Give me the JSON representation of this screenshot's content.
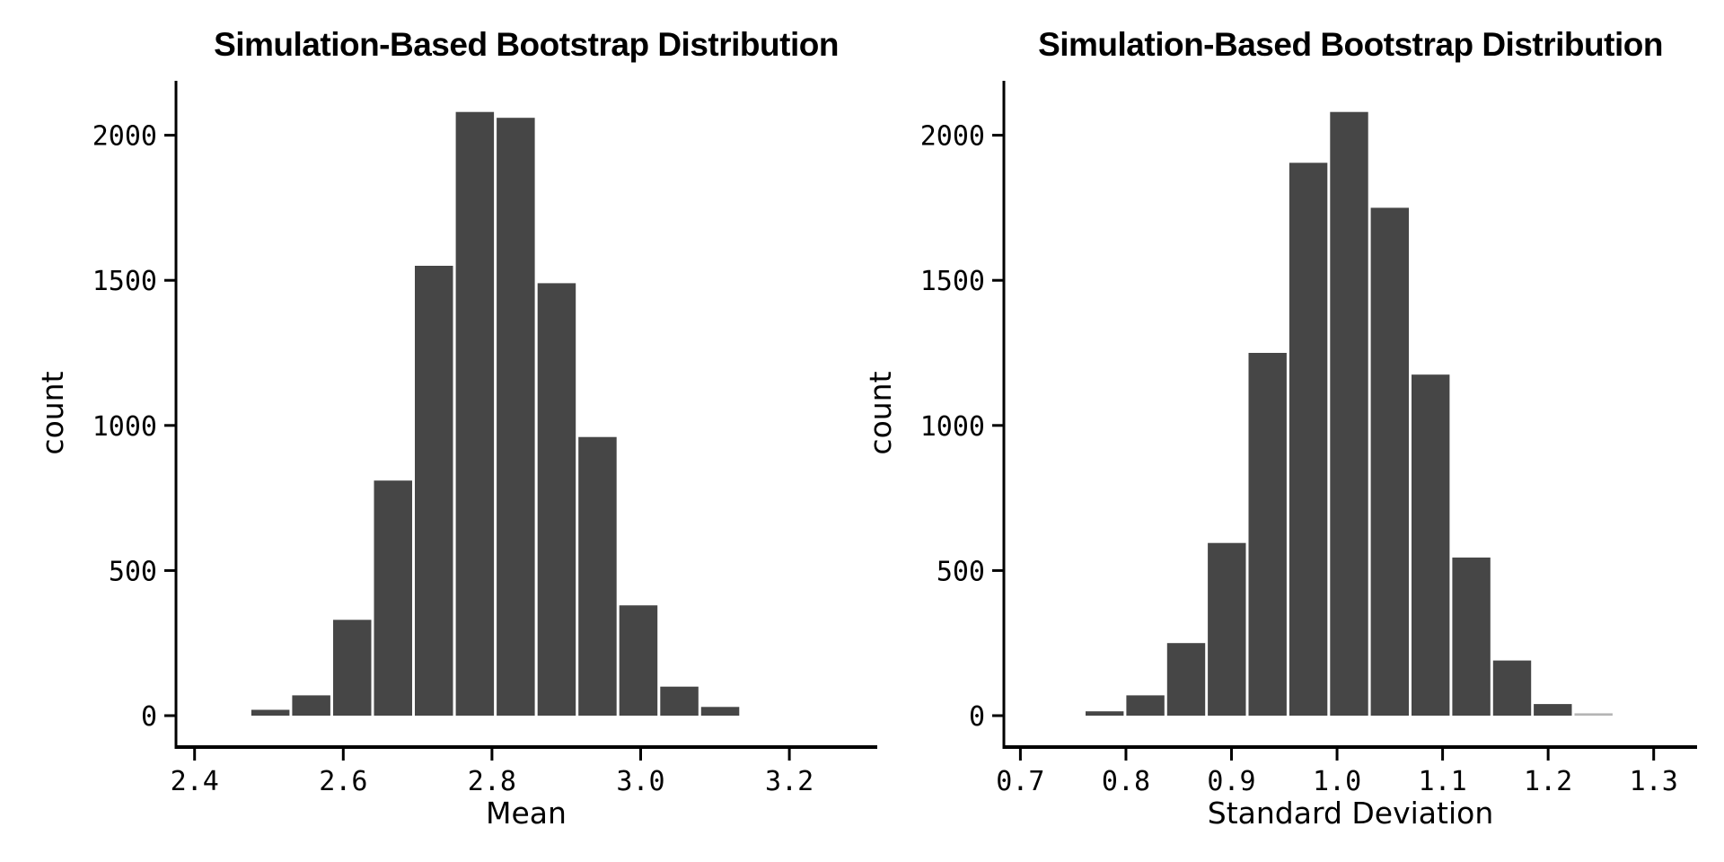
{
  "figure": {
    "background": "#ffffff",
    "text_color": "#000000",
    "axis_color": "#000000"
  },
  "chart_data": [
    {
      "type": "bar",
      "subtype": "histogram",
      "title": "Simulation-Based Bootstrap Distribution",
      "xlabel": "Mean",
      "ylabel": "count",
      "bar_color": "#464646",
      "grid": false,
      "legend": null,
      "x_tick_labels": [
        "2.4",
        "2.6",
        "2.8",
        "3.0",
        "3.2"
      ],
      "x_tick_values": [
        2.4,
        2.6,
        2.8,
        3.0,
        3.2
      ],
      "y_tick_labels": [
        "0",
        "500",
        "1000",
        "1500",
        "2000"
      ],
      "y_tick_values": [
        0,
        500,
        1000,
        1500,
        2000
      ],
      "xlim": [
        2.38,
        3.33
      ],
      "ylim": [
        0,
        2185
      ],
      "bin_start": 2.4745,
      "bin_width": 0.055,
      "counts": [
        20,
        70,
        330,
        810,
        1550,
        2080,
        2060,
        1490,
        960,
        380,
        100,
        30
      ]
    },
    {
      "type": "bar",
      "subtype": "histogram",
      "title": "Simulation-Based Bootstrap Distribution",
      "xlabel": "Standard Deviation",
      "ylabel": "count",
      "bar_color": "#464646",
      "grid": false,
      "legend": null,
      "x_tick_labels": [
        "0.7",
        "0.8",
        "0.9",
        "1.0",
        "1.1",
        "1.2",
        "1.3"
      ],
      "x_tick_values": [
        0.7,
        0.8,
        0.9,
        1.0,
        1.1,
        1.2,
        1.3
      ],
      "y_tick_labels": [
        "0",
        "500",
        "1000",
        "1500",
        "2000"
      ],
      "y_tick_values": [
        0,
        500,
        1000,
        1500,
        2000
      ],
      "xlim": [
        0.66,
        1.34
      ],
      "ylim": [
        0,
        2185
      ],
      "bin_start": 0.7605,
      "bin_width": 0.0386,
      "counts": [
        15,
        70,
        250,
        595,
        1250,
        1905,
        2080,
        1750,
        1175,
        545,
        190,
        40,
        8
      ],
      "bar_color_overrides": {
        "12": "#b4b4b4"
      }
    }
  ]
}
